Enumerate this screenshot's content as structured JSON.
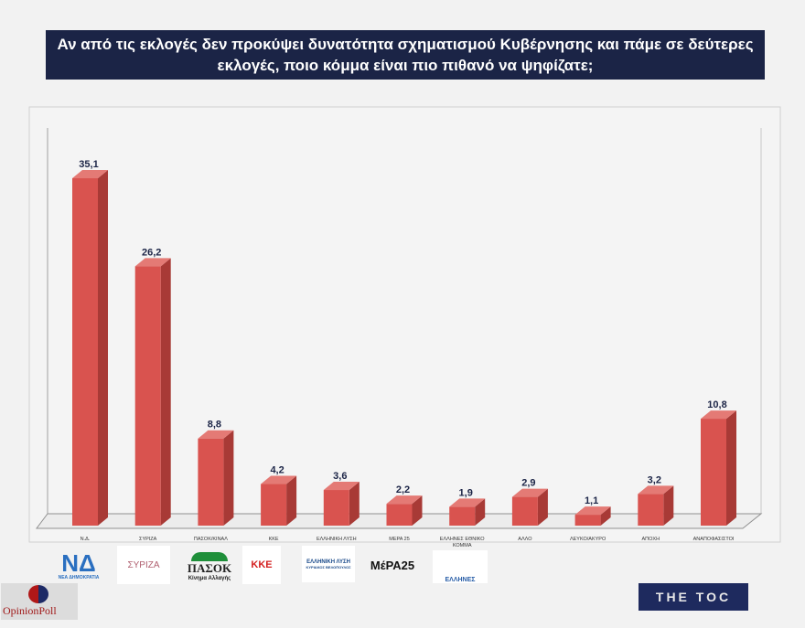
{
  "title": "Αν από τις εκλογές δεν προκύψει δυνατότητα σχηματισμού Κυβέρνησης και πάμε σε δεύτερες εκλογές, ποιο κόμμα είναι πιο πιθανό να ψηφίζατε;",
  "chart_data": {
    "type": "bar",
    "style": "3d",
    "title": "Αν από τις εκλογές δεν προκύψει δυνατότητα σχηματισμού Κυβέρνησης και πάμε σε δεύτερες εκλογές, ποιο κόμμα είναι πιο πιθανό να ψηφίζατε;",
    "categories": [
      "Ν.Δ.",
      "ΣΥΡΙΖΑ",
      "ΠΑΣΟΚ/ΚΙΝΑΛ",
      "ΚΚΕ",
      "ΕΛΛΗΝΙΚΗ ΛΥΣΗ",
      "ΜΕΡΑ 25",
      "ΕΛΛΗΝΕΣ ΕΘΝΙΚΟ ΚΟΜΜΑ",
      "ΑΛΛΟ",
      "ΛΕΥΚΟ/ΑΚΥΡΟ",
      "ΑΠΟΧΗ",
      "ΑΝΑΠΟΦΑΣΙΣΤΟΙ"
    ],
    "values": [
      35.1,
      26.2,
      8.8,
      4.2,
      3.6,
      2.2,
      1.9,
      2.9,
      1.1,
      3.2,
      10.8
    ],
    "data_labels": [
      "35,1",
      "26,2",
      "8,8",
      "4,2",
      "3,6",
      "2,2",
      "1,9",
      "2,9",
      "1,1",
      "3,2",
      "10,8"
    ],
    "xlabel": "",
    "ylabel": "",
    "ylim": [
      0,
      40
    ],
    "grid": false,
    "bar_color": "#d9534f"
  },
  "logos": {
    "nd": "ΝΔ",
    "nd_sub": "ΝΕΑ ΔΗΜΟΚΡΑΤΙΑ",
    "syriza": "ΣΥΡΙΖΑ",
    "pasok": "ΠΑΣΟΚ",
    "pasok_sub": "Κίνημα Αλλαγής",
    "kke": "ΚΚΕ",
    "el_lysi": "ΕΛΛΗΝΙΚΗ ΛΥΣΗ",
    "el_lysi_sub": "ΚΥΡΙΑΚΟΣ ΒΕΛΟΠΟΥΛΟΣ",
    "mera": "ΜέΡΑ25",
    "ellines": "ΕΛΛΗΝΕΣ",
    "opinion_poll": "OpinionPoll",
    "toc": "THE TOC"
  }
}
